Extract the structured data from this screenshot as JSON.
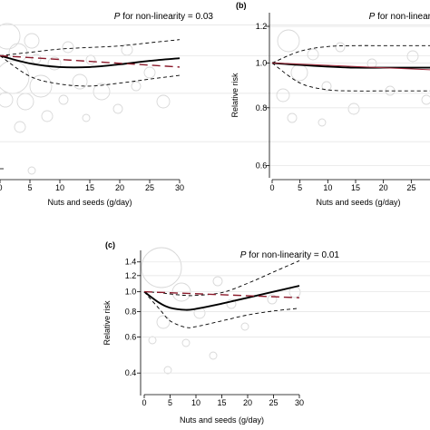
{
  "chart_data": [
    {
      "type": "line",
      "panel_label": "",
      "annotation": {
        "prefix": "P",
        "text": " for non-linearity = 0.03"
      },
      "xlabel": "Nuts and seeds (g/day)",
      "ylabel": "",
      "x_ticks": [
        0,
        5,
        10,
        15,
        20,
        25,
        30
      ],
      "y_scale": "log",
      "y_ticks": [],
      "xlim": [
        0,
        30
      ],
      "ylim": [
        0.5,
        1.25
      ],
      "grid": false,
      "series": [
        {
          "style": "solid-black",
          "x": [
            0,
            5,
            10,
            15,
            20,
            25,
            30
          ],
          "y": [
            1.0,
            0.955,
            0.935,
            0.935,
            0.95,
            0.97,
            0.985
          ]
        },
        {
          "style": "dashed-black-upper",
          "x": [
            0,
            5,
            10,
            15,
            20,
            25,
            30
          ],
          "y": [
            1.0,
            1.02,
            1.04,
            1.05,
            1.06,
            1.08,
            1.1
          ]
        },
        {
          "style": "dashed-black-lower",
          "x": [
            0,
            5,
            10,
            15,
            20,
            25,
            30
          ],
          "y": [
            1.0,
            0.885,
            0.845,
            0.835,
            0.85,
            0.87,
            0.89
          ]
        },
        {
          "style": "dashed-red-linear",
          "x": [
            0,
            30
          ],
          "y": [
            1.0,
            0.935
          ]
        }
      ]
    },
    {
      "type": "line",
      "panel_label": "(b)",
      "annotation": {
        "prefix": "P",
        "text": " for non-linear"
      },
      "xlabel": "Nuts and seeds (g/day)",
      "ylabel": "Relative risk",
      "x_ticks": [
        0,
        5,
        10,
        15,
        20,
        25
      ],
      "y_scale": "log",
      "y_ticks": [
        "0.6",
        "0.8",
        "1.0",
        "1.2"
      ],
      "xlim": [
        0,
        30
      ],
      "ylim": [
        0.58,
        1.25
      ],
      "grid": false,
      "series": [
        {
          "style": "solid-black",
          "x": [
            0,
            5,
            10,
            15,
            20,
            25,
            30
          ],
          "y": [
            1.0,
            0.99,
            0.982,
            0.977,
            0.977,
            0.977,
            0.977
          ]
        },
        {
          "style": "dashed-black-upper",
          "x": [
            0,
            5,
            10,
            15,
            20,
            25,
            30
          ],
          "y": [
            1.0,
            1.06,
            1.085,
            1.09,
            1.09,
            1.09,
            1.09
          ]
        },
        {
          "style": "dashed-black-lower",
          "x": [
            0,
            5,
            10,
            15,
            20,
            25,
            30
          ],
          "y": [
            1.0,
            0.905,
            0.875,
            0.87,
            0.87,
            0.87,
            0.87
          ]
        },
        {
          "style": "solid-red-linear",
          "x": [
            0,
            30
          ],
          "y": [
            1.0,
            0.965
          ]
        }
      ]
    },
    {
      "type": "line",
      "panel_label": "(c)",
      "annotation": {
        "prefix": "P",
        "text": " for non-linearity = 0.01"
      },
      "xlabel": "Nuts and seeds (g/day)",
      "ylabel": "Relative risk",
      "x_ticks": [
        0,
        5,
        10,
        15,
        20,
        25,
        30
      ],
      "y_scale": "log",
      "y_ticks": [
        "0.4",
        "0.6",
        "0.8",
        "1.0",
        "1.2",
        "1.4"
      ],
      "xlim": [
        0,
        30
      ],
      "ylim": [
        0.33,
        1.5
      ],
      "grid": false,
      "series": [
        {
          "style": "solid-black",
          "x": [
            0,
            3,
            5,
            8,
            10,
            15,
            20,
            25,
            30
          ],
          "y": [
            1.0,
            0.88,
            0.835,
            0.815,
            0.825,
            0.875,
            0.935,
            1.0,
            1.07
          ]
        },
        {
          "style": "dashed-black-upper",
          "x": [
            0,
            3,
            5,
            8,
            10,
            15,
            20,
            25,
            30
          ],
          "y": [
            1.0,
            0.99,
            0.975,
            0.96,
            0.96,
            0.99,
            1.1,
            1.25,
            1.42
          ]
        },
        {
          "style": "dashed-black-lower",
          "x": [
            0,
            3,
            5,
            8,
            10,
            15,
            20,
            25,
            30
          ],
          "y": [
            1.0,
            0.82,
            0.72,
            0.67,
            0.675,
            0.72,
            0.77,
            0.805,
            0.83
          ]
        },
        {
          "style": "dashed-red-linear",
          "x": [
            0,
            30
          ],
          "y": [
            1.0,
            0.935
          ]
        }
      ]
    }
  ]
}
